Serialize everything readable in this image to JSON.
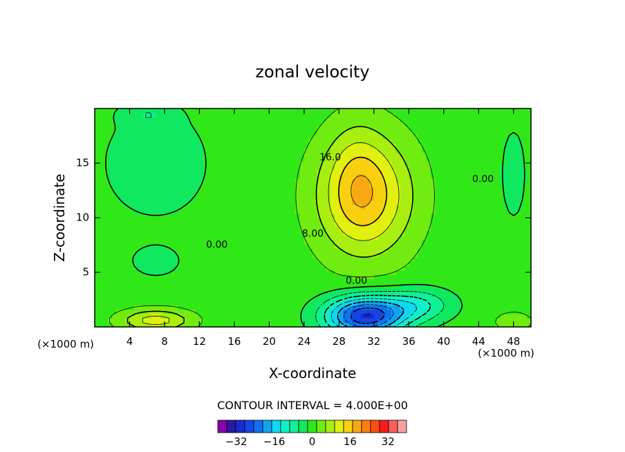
{
  "chart_data": {
    "type": "heatmap",
    "title": "zonal velocity",
    "xlabel": "X-coordinate",
    "ylabel": "Z-coordinate",
    "x_unit_left": "(×1000 m)",
    "x_unit_right": "(×1000 m)",
    "xlim": [
      0,
      50
    ],
    "ylim": [
      0,
      20
    ],
    "x_ticks": [
      4,
      8,
      12,
      16,
      20,
      24,
      28,
      32,
      36,
      40,
      44,
      48
    ],
    "y_ticks": [
      5,
      10,
      15
    ],
    "contour_interval_text": "CONTOUR INTERVAL = 4.000E+00",
    "contour_labels": [
      {
        "text": "16.0",
        "x": 27,
        "y": 15.5
      },
      {
        "text": "8.00",
        "x": 25,
        "y": 8.5
      },
      {
        "text": "0.00",
        "x": 14,
        "y": 7.5
      },
      {
        "text": "0.00",
        "x": 30,
        "y": 4.2
      },
      {
        "text": "0.00",
        "x": 44.5,
        "y": 13.5
      }
    ],
    "colorbar": {
      "levels": [
        -36,
        -32,
        -28,
        -24,
        -20,
        -16,
        -12,
        -8,
        -4,
        0,
        4,
        8,
        12,
        16,
        20,
        24,
        28,
        32,
        36
      ],
      "tick_labels": [
        "-32",
        "-16",
        "0",
        "16",
        "32"
      ],
      "tick_values": [
        -32,
        -16,
        0,
        16,
        32
      ],
      "colors": [
        "#8800b0",
        "#2a1aa0",
        "#1a2acc",
        "#1546e6",
        "#1070f0",
        "#10a4f0",
        "#10d8f0",
        "#10f0c8",
        "#10f098",
        "#10e860",
        "#30e818",
        "#70ec10",
        "#a8ee10",
        "#e0f010",
        "#f8d010",
        "#f8a810",
        "#f87e10",
        "#f85010",
        "#f81c1c",
        "#f86060",
        "#f8a0a0"
      ]
    },
    "field": {
      "background": 2,
      "features": [
        {
          "cx": 31,
          "cy": 12,
          "sx": 5.5,
          "sy": 5.5,
          "amp": 16
        },
        {
          "cx": 30,
          "cy": 14,
          "sx": 3,
          "sy": 5,
          "amp": 4
        },
        {
          "cx": 31,
          "cy": 1,
          "sx": 4.5,
          "sy": 1.8,
          "amp": -30
        },
        {
          "cx": 37,
          "cy": 2,
          "sx": 4,
          "sy": 1.5,
          "amp": -10
        },
        {
          "cx": 7,
          "cy": 0.6,
          "sx": 4,
          "sy": 1,
          "amp": 12
        },
        {
          "cx": 48,
          "cy": 0.5,
          "sx": 2,
          "sy": 0.8,
          "amp": 6
        },
        {
          "cx": 7,
          "cy": 15,
          "sx": 6,
          "sy": 5,
          "amp": -5
        },
        {
          "cx": 7,
          "cy": 6,
          "sx": 3,
          "sy": 1.5,
          "amp": -4
        },
        {
          "cx": 6,
          "cy": 19.5,
          "sx": 3,
          "sy": 1,
          "amp": -4
        },
        {
          "cx": 48,
          "cy": 14,
          "sx": 2,
          "sy": 6,
          "amp": -3
        }
      ]
    }
  }
}
